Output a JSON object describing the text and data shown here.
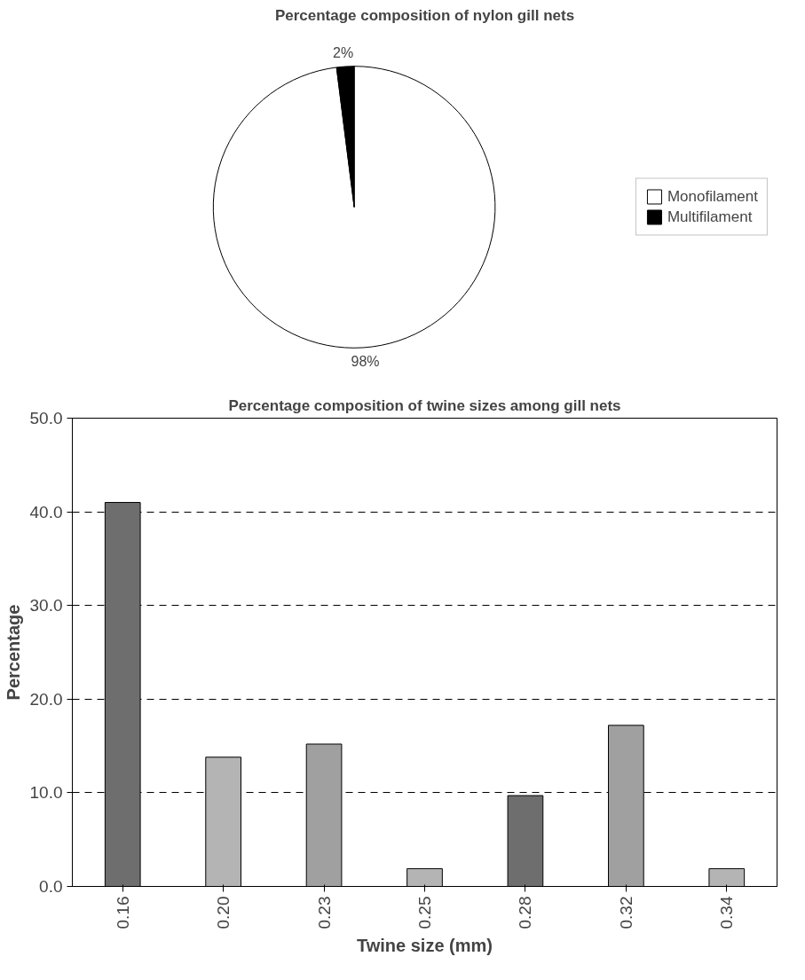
{
  "chart_data": [
    {
      "type": "pie",
      "title": "Percentage composition of nylon gill nets",
      "categories": [
        "Monofilament",
        "Multifilament"
      ],
      "values": [
        98,
        2
      ],
      "colors": [
        "#ffffff",
        "#000000"
      ],
      "value_labels": [
        "98%",
        "2%"
      ],
      "legend": "right"
    },
    {
      "type": "bar",
      "title": "Percentage composition of twine sizes among gill nets",
      "xlabel": "Twine size (mm)",
      "ylabel": "Percentage",
      "categories": [
        "0.16",
        "0.20",
        "0.23",
        "0.25",
        "0.28",
        "0.32",
        "0.34"
      ],
      "values": [
        41.0,
        13.8,
        15.2,
        1.9,
        9.7,
        17.2,
        1.9
      ],
      "colors": [
        "#6e6e6e",
        "#b4b4b4",
        "#a0a0a0",
        "#b4b4b4",
        "#6e6e6e",
        "#a0a0a0",
        "#b4b4b4"
      ],
      "ylim": [
        0,
        50
      ],
      "yticks": [
        {
          "value": 0,
          "label": "0.0"
        },
        {
          "value": 10,
          "label": "10.0"
        },
        {
          "value": 20,
          "label": "20.0"
        },
        {
          "value": 30,
          "label": "30.0"
        },
        {
          "value": 40,
          "label": "40.0"
        },
        {
          "value": 50,
          "label": "50.0"
        }
      ],
      "grid": "y"
    }
  ]
}
